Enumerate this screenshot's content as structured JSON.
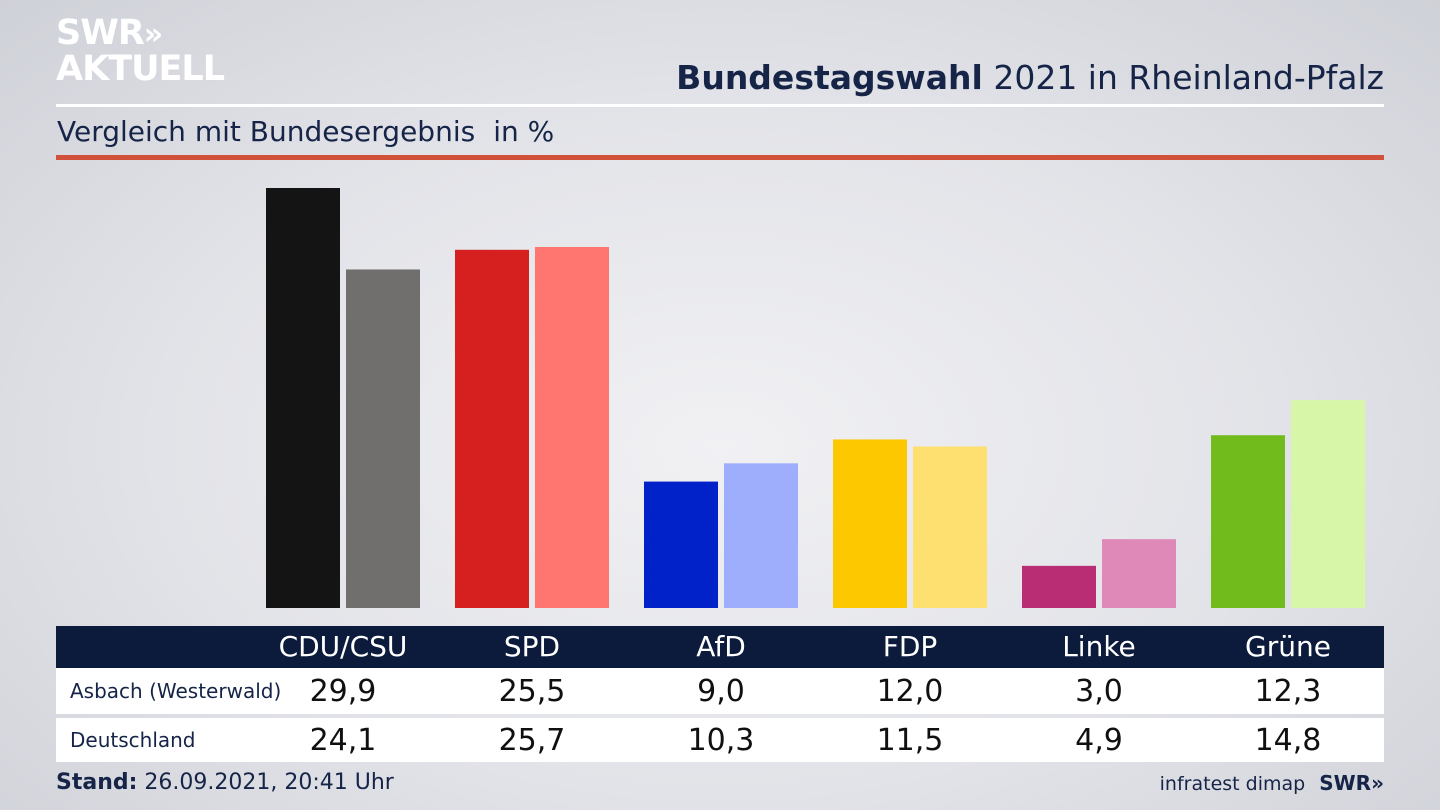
{
  "brand": {
    "logo_line1": "SWR",
    "logo_arrows": "»",
    "logo_line2": "AKTUELL",
    "footer_brand": "SWR»"
  },
  "header": {
    "title_bold": "Bundestagswahl",
    "title_rest": "2021 in Rheinland-Pfalz"
  },
  "subtitle": {
    "text": "Vergleich mit Bundesergebnis",
    "unit": "in %"
  },
  "footer": {
    "stand_label": "Stand:",
    "stand_value": "26.09.2021, 20:41 Uhr",
    "source": "infratest dimap"
  },
  "table": {
    "rows": [
      {
        "label": "Asbach (Westerwald)",
        "values": [
          "29,9",
          "25,5",
          "9,0",
          "12,0",
          "3,0",
          "12,3"
        ]
      },
      {
        "label": "Deutschland",
        "values": [
          "24,1",
          "25,7",
          "10,3",
          "11,5",
          "4,9",
          "14,8"
        ]
      }
    ]
  },
  "chart_data": {
    "type": "bar",
    "title": "Bundestagswahl 2021 in Rheinland-Pfalz",
    "subtitle": "Vergleich mit Bundesergebnis in %",
    "categories": [
      "CDU/CSU",
      "SPD",
      "AfD",
      "FDP",
      "Linke",
      "Grüne"
    ],
    "series": [
      {
        "name": "Asbach (Westerwald)",
        "values": [
          29.9,
          25.5,
          9.0,
          12.0,
          3.0,
          12.3
        ],
        "colors": [
          "#141414",
          "#d61f1f",
          "#0022c8",
          "#fdc800",
          "#b92d74",
          "#72bb1c"
        ]
      },
      {
        "name": "Deutschland",
        "values": [
          24.1,
          25.7,
          10.3,
          11.5,
          4.9,
          14.8
        ],
        "colors": [
          "#706f6d",
          "#ff7570",
          "#9eaefd",
          "#fde070",
          "#df89b8",
          "#d7f6a8"
        ]
      }
    ],
    "ylim": [
      0,
      29.9
    ],
    "grid": false,
    "legend": "table-below"
  }
}
